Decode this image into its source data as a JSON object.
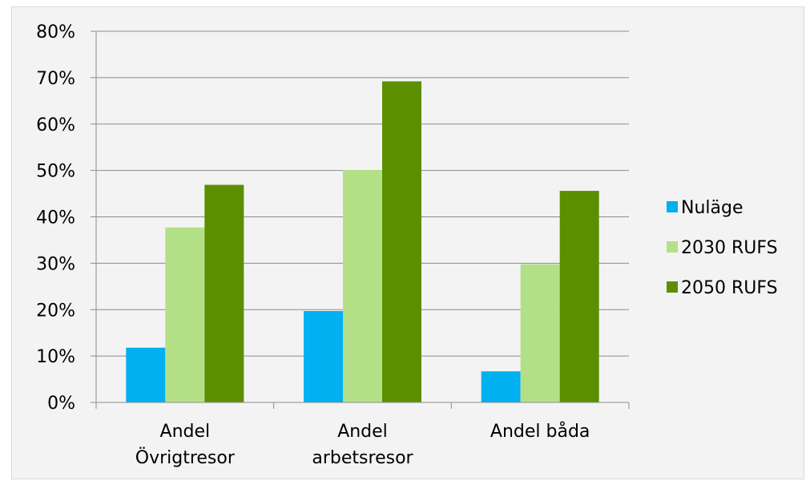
{
  "chart_data": {
    "type": "bar",
    "categories": [
      [
        "Andel",
        "Övrigtresor"
      ],
      [
        "Andel",
        "arbetsresor"
      ],
      [
        "Andel båda"
      ]
    ],
    "series": [
      {
        "name": "Nuläge",
        "color": "#00b0f0",
        "values": [
          0.118,
          0.197,
          0.067
        ]
      },
      {
        "name": "2030 RUFS",
        "color": "#b3e086",
        "values": [
          0.377,
          0.501,
          0.298
        ]
      },
      {
        "name": "2050 RUFS",
        "color": "#5b8f00",
        "values": [
          0.469,
          0.692,
          0.456
        ]
      }
    ],
    "ylim": [
      0,
      0.8
    ],
    "yticks": [
      "0%",
      "10%",
      "20%",
      "30%",
      "40%",
      "50%",
      "60%",
      "70%",
      "80%"
    ],
    "grid": true,
    "legend_position": "right",
    "title": "",
    "xlabel": "",
    "ylabel": ""
  }
}
